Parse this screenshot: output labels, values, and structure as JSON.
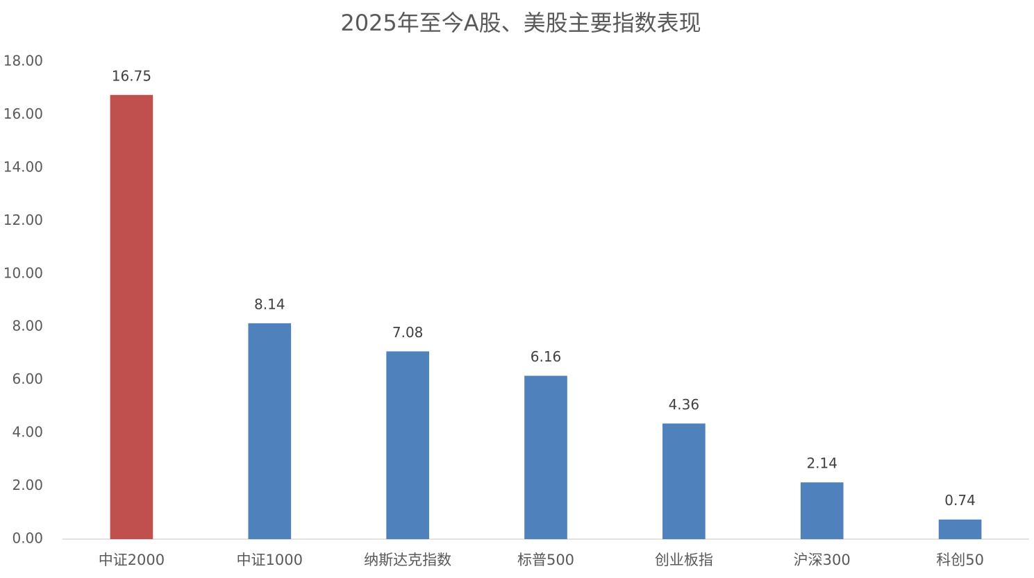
{
  "chart_data": {
    "type": "bar",
    "title": "2025年至今A股、美股主要指数表现",
    "categories": [
      "中证2000",
      "中证1000",
      "纳斯达克指数",
      "标普500",
      "创业板指",
      "沪深300",
      "科创50"
    ],
    "values": [
      16.75,
      8.14,
      7.08,
      6.16,
      4.36,
      2.14,
      0.74
    ],
    "colors": [
      "#c0504d",
      "#4f81bd",
      "#4f81bd",
      "#4f81bd",
      "#4f81bd",
      "#4f81bd",
      "#4f81bd"
    ],
    "ylim": [
      0,
      18
    ],
    "yticks": [
      {
        "value": 0,
        "label": "0.00"
      },
      {
        "value": 2,
        "label": "2.00"
      },
      {
        "value": 4,
        "label": "4.00"
      },
      {
        "value": 6,
        "label": "6.00"
      },
      {
        "value": 8,
        "label": "8.00"
      },
      {
        "value": 10,
        "label": "10.00"
      },
      {
        "value": 12,
        "label": "12.00"
      },
      {
        "value": 14,
        "label": "14.00"
      },
      {
        "value": 16,
        "label": "16.00"
      },
      {
        "value": 18,
        "label": "18.00"
      }
    ],
    "grid": false
  }
}
